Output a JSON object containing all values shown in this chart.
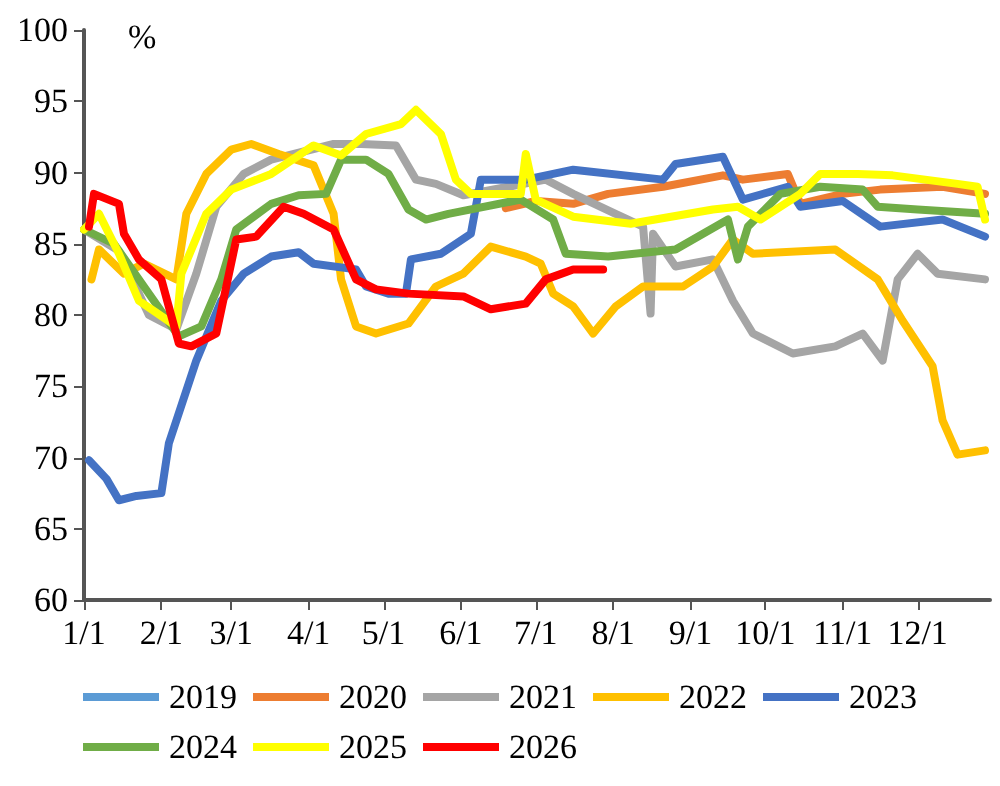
{
  "chart_data": {
    "type": "line",
    "ylabel": "%",
    "xlim": [
      "--01-01",
      "--12-30"
    ],
    "ylim": [
      60,
      100
    ],
    "xticks": [
      {
        "value": "--01-01",
        "label": "1/1"
      },
      {
        "value": "--02-01",
        "label": "2/1"
      },
      {
        "value": "--03-01",
        "label": "3/1"
      },
      {
        "value": "--04-01",
        "label": "4/1"
      },
      {
        "value": "--05-01",
        "label": "5/1"
      },
      {
        "value": "--06-01",
        "label": "6/1"
      },
      {
        "value": "--07-01",
        "label": "7/1"
      },
      {
        "value": "--08-01",
        "label": "8/1"
      },
      {
        "value": "--09-01",
        "label": "9/1"
      },
      {
        "value": "--10-01",
        "label": "10/1"
      },
      {
        "value": "--11-01",
        "label": "11/1"
      },
      {
        "value": "--12-01",
        "label": "12/1"
      }
    ],
    "yticks": [
      60,
      65,
      70,
      75,
      80,
      85,
      90,
      95,
      100
    ],
    "grid": false,
    "legend": "bottom",
    "marker": "none",
    "line_style": "solid",
    "series": [
      {
        "name": "2019",
        "color": "#5b9bd5"
      },
      {
        "name": "2020",
        "color": "#ed7d31",
        "x": [
          "--06-19",
          "--07-01",
          "--07-16",
          "--07-30",
          "--08-21",
          "--09-14",
          "--09-22",
          "--10-10",
          "--10-15",
          "--11-01",
          "--11-16",
          "--12-11",
          "--12-28"
        ],
        "values": [
          87.5,
          88.0,
          87.8,
          88.5,
          89.0,
          89.8,
          89.5,
          89.9,
          87.8,
          88.5,
          88.8,
          89.0,
          88.5
        ]
      },
      {
        "name": "2021",
        "color": "#a5a5a5",
        "x": [
          "--01-01",
          "--01-15",
          "--01-27",
          "--02-07",
          "--02-15",
          "--02-23",
          "--03-06",
          "--03-17",
          "--04-11",
          "--04-22",
          "--05-06",
          "--05-14",
          "--05-22",
          "--06-02",
          "--07-05",
          "--07-16",
          "--08-02",
          "--08-13",
          "--08-16",
          "--08-17",
          "--08-26",
          "--09-10",
          "--09-18",
          "--09-26",
          "--10-12",
          "--10-29",
          "--11-09",
          "--11-17",
          "--11-23",
          "--12-01",
          "--12-09",
          "--12-28"
        ],
        "values": [
          86,
          84.5,
          80,
          79,
          82.9,
          87.6,
          89.9,
          90.9,
          92,
          92,
          91.9,
          89.5,
          89.2,
          88.4,
          89.5,
          88.5,
          87.1,
          86.2,
          80.1,
          85.7,
          83.4,
          83.9,
          81,
          78.7,
          77.3,
          77.8,
          78.7,
          76.8,
          82.5,
          84.3,
          82.9,
          82.5
        ]
      },
      {
        "name": "2022",
        "color": "#ffc000",
        "x": [
          "--01-04",
          "--01-07",
          "--01-17",
          "--01-25",
          "--02-07",
          "--02-11",
          "--02-19",
          "--03-01",
          "--03-09",
          "--03-20",
          "--04-03",
          "--04-11",
          "--04-14",
          "--04-20",
          "--04-28",
          "--05-11",
          "--05-22",
          "--06-02",
          "--06-13",
          "--06-27",
          "--07-03",
          "--07-08",
          "--07-16",
          "--07-24",
          "--08-02",
          "--08-13",
          "--08-29",
          "--09-10",
          "--09-18",
          "--09-26",
          "--10-29",
          "--11-15",
          "--11-25",
          "--12-07",
          "--12-11",
          "--12-17",
          "--12-28"
        ],
        "values": [
          82.5,
          84.6,
          82.9,
          83.6,
          82.5,
          87.1,
          89.9,
          91.6,
          92,
          91.3,
          90.5,
          87.1,
          82.5,
          79.2,
          78.7,
          79.4,
          82,
          82.9,
          84.8,
          84.1,
          83.6,
          81.5,
          80.6,
          78.7,
          80.6,
          82,
          82,
          83.4,
          85.3,
          84.3,
          84.6,
          82.5,
          79.6,
          76.4,
          72.6,
          70.2,
          70.5
        ]
      },
      {
        "name": "2023",
        "color": "#4472c4",
        "x": [
          "--01-03",
          "--01-10",
          "--01-15",
          "--01-22",
          "--02-01",
          "--02-04",
          "--02-15",
          "--02-25",
          "--03-06",
          "--03-17",
          "--03-28",
          "--04-03",
          "--04-20",
          "--04-24",
          "--05-03",
          "--05-10",
          "--05-12",
          "--05-24",
          "--06-05",
          "--06-09",
          "--06-27",
          "--07-16",
          "--08-21",
          "--08-26",
          "--09-14",
          "--09-22",
          "--10-10",
          "--10-15",
          "--11-01",
          "--11-16",
          "--12-11",
          "--12-28"
        ],
        "values": [
          69.8,
          68.5,
          67,
          67.3,
          67.5,
          71,
          76.8,
          81,
          82.9,
          84.1,
          84.4,
          83.6,
          83.2,
          82,
          81.5,
          81.5,
          83.9,
          84.3,
          85.7,
          89.5,
          89.5,
          90.2,
          89.5,
          90.6,
          91.1,
          88.1,
          89,
          87.6,
          88,
          86.2,
          86.7,
          85.5
        ]
      },
      {
        "name": "2024",
        "color": "#70ad47",
        "x": [
          "--01-01",
          "--01-13",
          "--01-25",
          "--02-08",
          "--02-17",
          "--02-25",
          "--03-03",
          "--03-17",
          "--03-28",
          "--04-08",
          "--04-14",
          "--04-24",
          "--05-03",
          "--05-11",
          "--05-18",
          "--05-27",
          "--06-25",
          "--07-08",
          "--07-13",
          "--07-30",
          "--08-26",
          "--09-16",
          "--09-20",
          "--09-24",
          "--10-07",
          "--10-23",
          "--11-09",
          "--11-15",
          "--12-01",
          "--12-28"
        ],
        "values": [
          86,
          85,
          82,
          78.5,
          79.2,
          82.5,
          86,
          87.8,
          88.4,
          88.5,
          90.9,
          90.9,
          89.9,
          87.4,
          86.7,
          87.1,
          88.1,
          86.7,
          84.3,
          84.1,
          84.6,
          86.7,
          83.9,
          86.2,
          88.5,
          89,
          88.8,
          87.6,
          87.4,
          87.1
        ]
      },
      {
        "name": "2025",
        "color": "#ffff00",
        "x": [
          "--01-01",
          "--01-07",
          "--01-15",
          "--01-23",
          "--02-07",
          "--02-09",
          "--02-19",
          "--03-01",
          "--03-17",
          "--04-03",
          "--04-14",
          "--04-24",
          "--05-08",
          "--05-14",
          "--05-24",
          "--05-30",
          "--06-05",
          "--06-25",
          "--06-27",
          "--07-01",
          "--07-16",
          "--08-08",
          "--09-10",
          "--09-20",
          "--09-29",
          "--10-15",
          "--10-23",
          "--11-07",
          "--11-21",
          "--12-17",
          "--12-25",
          "--12-28"
        ],
        "values": [
          86,
          87.1,
          84.3,
          81,
          79.2,
          82.9,
          87.1,
          88.8,
          89.9,
          91.9,
          91.2,
          92.7,
          93.4,
          94.4,
          92.7,
          89.5,
          88.5,
          88.5,
          91.3,
          88.1,
          86.9,
          86.4,
          87.4,
          87.6,
          86.7,
          88.5,
          89.9,
          89.9,
          89.8,
          89.2,
          89,
          86.7
        ]
      },
      {
        "name": "2026",
        "color": "#ff0000",
        "x": [
          "--01-03",
          "--01-05",
          "--01-15",
          "--01-17",
          "--01-23",
          "--02-01",
          "--02-08",
          "--02-13",
          "--02-23",
          "--03-03",
          "--03-11",
          "--03-22",
          "--03-30",
          "--04-11",
          "--04-20",
          "--04-28",
          "--05-11",
          "--06-02",
          "--06-13",
          "--06-27",
          "--07-05",
          "--07-16",
          "--07-28"
        ],
        "values": [
          86.2,
          88.5,
          87.8,
          85.7,
          83.9,
          82.5,
          78,
          77.8,
          78.7,
          85.3,
          85.5,
          87.6,
          87.1,
          86,
          82.5,
          81.8,
          81.5,
          81.3,
          80.4,
          80.8,
          82.5,
          83.2,
          83.2
        ]
      }
    ]
  }
}
